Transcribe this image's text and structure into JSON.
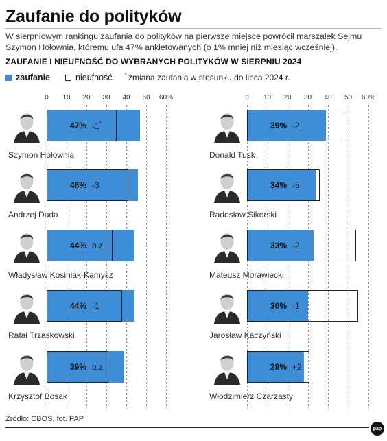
{
  "header": {
    "title": "Zaufanie do polityków",
    "subtitle": "W sierpniowym rankingu zaufania do polityków na pierwsze miejsce powrócił marszałek Sejmu Szymon Hołownia, któremu ufa 47% ankietowanych (o 1% mniej niż miesiąc wcześniej).",
    "section_title": "ZAUFANIE I NIEUFNOŚĆ DO WYBRANYCH POLITYKÓW W SIERPNIU 2024"
  },
  "legend": {
    "trust": "zaufanie",
    "distrust": "nieufność",
    "note_marker": "*",
    "note": "zmiana zaufania w stosunku do lipca 2024 r."
  },
  "colors": {
    "trust": "#3d8ed7",
    "distrust_border": "#222222"
  },
  "axis_ticks": [
    "0",
    "10",
    "20",
    "30",
    "40",
    "50",
    "60%"
  ],
  "footer": {
    "source": "Źródło: CBOS, fot. PAP",
    "logo": "pap"
  },
  "chart_data": {
    "type": "bar",
    "title": "Zaufanie do polityków",
    "xlim": [
      0,
      60
    ],
    "series": [
      {
        "name": "zaufanie",
        "values": [
          47,
          46,
          44,
          44,
          39,
          39,
          34,
          33,
          30,
          28
        ]
      },
      {
        "name": "nieufność",
        "values": [
          35,
          41,
          33,
          38,
          31,
          48,
          36,
          54,
          55,
          31
        ]
      }
    ],
    "politicians": [
      {
        "name": "Szymon Hołownia",
        "trust": 47,
        "distrust": 35,
        "trust_label": "47%",
        "change": "-1",
        "change_mark": "*"
      },
      {
        "name": "Andrzej Duda",
        "trust": 46,
        "distrust": 41,
        "trust_label": "46%",
        "change": "-3",
        "change_mark": ""
      },
      {
        "name": "Władysław Kosiniak-Kamysz",
        "trust": 44,
        "distrust": 33,
        "trust_label": "44%",
        "change": "b.z.",
        "change_mark": ""
      },
      {
        "name": "Rafał Trzaskowski",
        "trust": 44,
        "distrust": 38,
        "trust_label": "44%",
        "change": "-1",
        "change_mark": ""
      },
      {
        "name": "Krzysztof Bosak",
        "trust": 39,
        "distrust": 31,
        "trust_label": "39%",
        "change": "b.z.",
        "change_mark": ""
      },
      {
        "name": "Donald Tusk",
        "trust": 39,
        "distrust": 48,
        "trust_label": "39%",
        "change": "-2",
        "change_mark": ""
      },
      {
        "name": "Radosław Sikorski",
        "trust": 34,
        "distrust": 36,
        "trust_label": "34%",
        "change": "-5",
        "change_mark": ""
      },
      {
        "name": "Mateusz Morawiecki",
        "trust": 33,
        "distrust": 54,
        "trust_label": "33%",
        "change": "-2",
        "change_mark": ""
      },
      {
        "name": "Jarosław Kaczyński",
        "trust": 30,
        "distrust": 55,
        "trust_label": "30%",
        "change": "-1",
        "change_mark": ""
      },
      {
        "name": "Włodzimierz Czarzasty",
        "trust": 28,
        "distrust": 31,
        "trust_label": "28%",
        "change": "+2",
        "change_mark": ""
      }
    ]
  }
}
